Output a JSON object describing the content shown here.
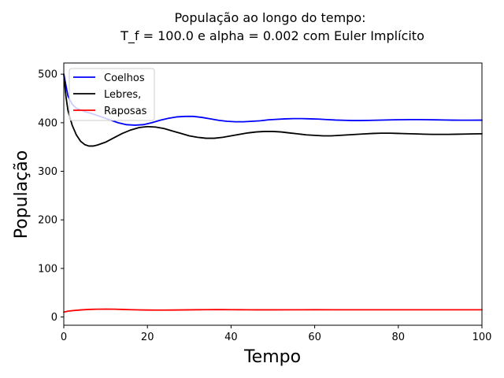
{
  "chart_data": {
    "type": "line",
    "title": "População ao longo do tempo:",
    "subtitle": "T_f = 100.0 e alpha = 0.002 com Euler Implícito",
    "xlabel": "Tempo",
    "ylabel": "População",
    "xlim": [
      0,
      100
    ],
    "ylim": [
      -17,
      523
    ],
    "xticks": [
      0,
      20,
      40,
      60,
      80,
      100
    ],
    "yticks": [
      0,
      100,
      200,
      300,
      400,
      500
    ],
    "legend_position": "top-left",
    "grid": false,
    "series": [
      {
        "name": "Coelhos",
        "color": "#0000ff",
        "x": [
          0,
          1,
          2,
          3,
          5,
          7,
          9,
          11,
          13,
          15,
          17,
          19,
          21,
          23,
          25,
          27,
          29,
          31,
          33,
          35,
          37,
          39,
          41,
          43,
          45,
          47,
          49,
          51,
          53,
          55,
          57,
          59,
          61,
          63,
          65,
          67,
          69,
          71,
          73,
          75,
          77,
          79,
          81,
          83,
          85,
          87,
          89,
          91,
          93,
          95,
          97,
          100
        ],
        "y": [
          500,
          455,
          438,
          430,
          423,
          418,
          412,
          406,
          400,
          396,
          395,
          396,
          400,
          405,
          409,
          412,
          413,
          413,
          411,
          408,
          405,
          403,
          402,
          402,
          403,
          404,
          406,
          407,
          408,
          408.5,
          408.5,
          408,
          407.5,
          406.5,
          405.5,
          405,
          404.5,
          404.5,
          404.8,
          405.2,
          405.6,
          406,
          406.3,
          406.4,
          406.4,
          406.2,
          405.9,
          405.6,
          405.3,
          405.2,
          405.2,
          405.3
        ]
      },
      {
        "name": "Lebres,",
        "color": "#000000",
        "x": [
          0,
          0.5,
          1,
          2,
          3,
          4,
          5,
          6,
          7,
          8,
          10,
          12,
          14,
          16,
          18,
          20,
          22,
          24,
          26,
          28,
          30,
          32,
          34,
          36,
          38,
          40,
          42,
          44,
          46,
          48,
          50,
          52,
          54,
          56,
          58,
          60,
          62,
          64,
          66,
          68,
          70,
          72,
          74,
          76,
          78,
          80,
          82,
          84,
          86,
          88,
          90,
          92,
          94,
          96,
          98,
          100
        ],
        "y": [
          500,
          455,
          425,
          395,
          375,
          362,
          355,
          352,
          352,
          354,
          360,
          369,
          378,
          385,
          390,
          392,
          391,
          388,
          383,
          378,
          373,
          370,
          368,
          368,
          370,
          373,
          376,
          379,
          381,
          382,
          382,
          381,
          379,
          377,
          375,
          374,
          373,
          373,
          374,
          375,
          376,
          377,
          378,
          378.5,
          378.5,
          378,
          377.5,
          377,
          376.5,
          376,
          376,
          376,
          376.3,
          376.7,
          377,
          377.3
        ]
      },
      {
        "name": "Raposas",
        "color": "#ff0000",
        "x": [
          0,
          1,
          2,
          4,
          6,
          8,
          10,
          12,
          14,
          16,
          18,
          20,
          22,
          24,
          26,
          28,
          30,
          32,
          34,
          36,
          38,
          40,
          42,
          44,
          46,
          48,
          50,
          55,
          60,
          65,
          70,
          75,
          80,
          85,
          90,
          95,
          100
        ],
        "y": [
          10,
          12,
          13,
          14.5,
          15.5,
          16,
          16.2,
          16,
          15.5,
          15,
          14.6,
          14.3,
          14.2,
          14.2,
          14.3,
          14.5,
          14.7,
          14.9,
          15,
          15.1,
          15.1,
          15,
          14.9,
          14.8,
          14.7,
          14.7,
          14.7,
          14.8,
          14.9,
          14.8,
          14.8,
          14.8,
          14.8,
          14.8,
          14.8,
          14.8,
          14.8
        ]
      }
    ]
  }
}
